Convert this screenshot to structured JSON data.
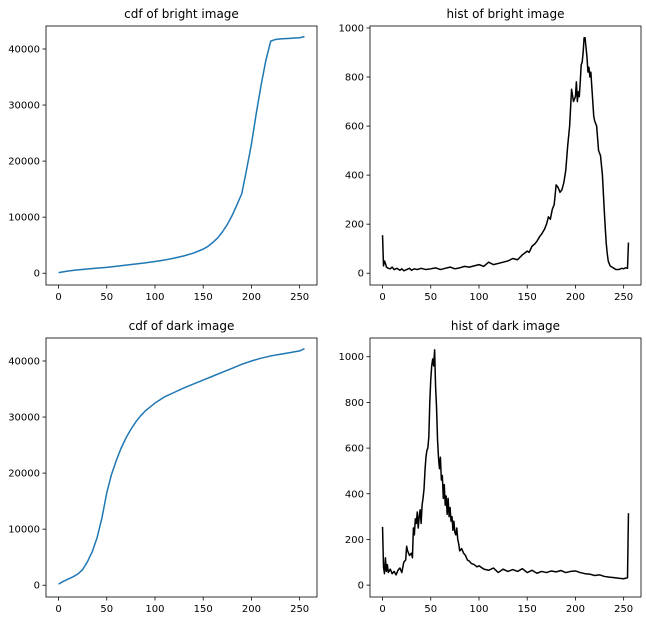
{
  "chart_data": [
    {
      "type": "line",
      "title": "cdf of bright image",
      "xlim": [
        -13,
        268
      ],
      "ylim": [
        -2100,
        44100
      ],
      "xticks": [
        0,
        50,
        100,
        150,
        200,
        250
      ],
      "yticks": [
        0,
        10000,
        20000,
        30000,
        40000
      ],
      "grid": false,
      "series": [
        {
          "color": "#1f77b4",
          "x": [
            0,
            10,
            20,
            30,
            40,
            50,
            60,
            70,
            80,
            90,
            100,
            110,
            120,
            130,
            140,
            150,
            155,
            160,
            165,
            170,
            175,
            180,
            185,
            190,
            195,
            200,
            205,
            210,
            215,
            220,
            225,
            230,
            235,
            240,
            245,
            250,
            255
          ],
          "y": [
            100,
            400,
            600,
            750,
            900,
            1050,
            1250,
            1450,
            1650,
            1850,
            2100,
            2350,
            2700,
            3100,
            3600,
            4300,
            4800,
            5500,
            6300,
            7400,
            8700,
            10300,
            12200,
            14200,
            18500,
            23000,
            28500,
            33500,
            38000,
            41400,
            41700,
            41800,
            41850,
            41900,
            41950,
            42000,
            42200
          ]
        }
      ]
    },
    {
      "type": "line",
      "title": "hist of bright image",
      "xlim": [
        -13,
        268
      ],
      "ylim": [
        -48,
        1008
      ],
      "xticks": [
        0,
        50,
        100,
        150,
        200,
        250
      ],
      "yticks": [
        0,
        200,
        400,
        600,
        800,
        1000
      ],
      "grid": false,
      "series": [
        {
          "color": "#000000",
          "x": [
            0,
            1,
            2,
            3,
            4,
            6,
            8,
            10,
            12,
            15,
            18,
            20,
            22,
            25,
            28,
            30,
            33,
            36,
            40,
            45,
            50,
            55,
            60,
            65,
            70,
            75,
            80,
            85,
            90,
            95,
            100,
            105,
            110,
            115,
            120,
            125,
            130,
            135,
            140,
            145,
            150,
            152,
            155,
            158,
            160,
            163,
            165,
            168,
            170,
            172,
            174,
            176,
            178,
            180,
            182,
            184,
            186,
            188,
            190,
            192,
            194,
            196,
            198,
            200,
            201,
            202,
            203,
            204,
            205,
            206,
            207,
            208,
            209,
            210,
            211,
            212,
            213,
            214,
            215,
            216,
            217,
            218,
            219,
            220,
            222,
            224,
            226,
            228,
            230,
            231,
            232,
            233,
            234,
            235,
            236,
            238,
            240,
            242,
            245,
            248,
            250,
            252,
            254,
            255
          ],
          "y": [
            155,
            30,
            50,
            40,
            25,
            20,
            18,
            25,
            15,
            20,
            12,
            18,
            10,
            15,
            20,
            12,
            18,
            15,
            20,
            15,
            18,
            22,
            15,
            20,
            25,
            18,
            22,
            28,
            25,
            30,
            35,
            28,
            45,
            35,
            40,
            45,
            50,
            60,
            55,
            75,
            90,
            85,
            110,
            120,
            130,
            150,
            160,
            180,
            200,
            230,
            220,
            260,
            280,
            360,
            350,
            330,
            340,
            370,
            420,
            520,
            600,
            750,
            700,
            720,
            780,
            700,
            740,
            720,
            780,
            850,
            860,
            900,
            960,
            960,
            920,
            880,
            820,
            840,
            800,
            820,
            760,
            700,
            640,
            620,
            600,
            500,
            480,
            400,
            250,
            180,
            120,
            80,
            50,
            40,
            30,
            25,
            20,
            15,
            15,
            20,
            18,
            22,
            20,
            125
          ]
        }
      ]
    },
    {
      "type": "line",
      "title": "cdf of dark image",
      "xlim": [
        -13,
        268
      ],
      "ylim": [
        -2100,
        44100
      ],
      "xticks": [
        0,
        50,
        100,
        150,
        200,
        250
      ],
      "yticks": [
        0,
        10000,
        20000,
        30000,
        40000
      ],
      "grid": false,
      "series": [
        {
          "color": "#1f77b4",
          "x": [
            0,
            5,
            10,
            15,
            20,
            25,
            30,
            35,
            40,
            45,
            50,
            55,
            60,
            65,
            70,
            75,
            80,
            85,
            90,
            95,
            100,
            110,
            120,
            130,
            140,
            150,
            160,
            170,
            180,
            190,
            200,
            210,
            220,
            230,
            240,
            250,
            255
          ],
          "y": [
            200,
            700,
            1100,
            1500,
            2000,
            2800,
            4200,
            6000,
            8500,
            12000,
            16500,
            19800,
            22300,
            24500,
            26300,
            27800,
            29100,
            30200,
            31100,
            31800,
            32500,
            33600,
            34400,
            35200,
            35900,
            36600,
            37300,
            38000,
            38700,
            39400,
            40000,
            40500,
            40900,
            41200,
            41500,
            41800,
            42200
          ]
        }
      ]
    },
    {
      "type": "line",
      "title": "hist of dark image",
      "xlim": [
        -13,
        268
      ],
      "ylim": [
        -52,
        1082
      ],
      "xticks": [
        0,
        50,
        100,
        150,
        200,
        250
      ],
      "yticks": [
        0,
        200,
        400,
        600,
        800,
        1000
      ],
      "grid": false,
      "series": [
        {
          "color": "#000000",
          "x": [
            0,
            1,
            2,
            3,
            4,
            5,
            6,
            8,
            10,
            12,
            14,
            16,
            18,
            20,
            22,
            24,
            25,
            26,
            28,
            30,
            31,
            32,
            33,
            34,
            35,
            36,
            37,
            38,
            39,
            40,
            41,
            42,
            43,
            44,
            45,
            46,
            47,
            48,
            49,
            50,
            51,
            52,
            53,
            54,
            55,
            56,
            57,
            58,
            59,
            60,
            61,
            62,
            63,
            64,
            65,
            66,
            67,
            68,
            69,
            70,
            71,
            72,
            73,
            74,
            75,
            76,
            77,
            78,
            79,
            80,
            82,
            84,
            86,
            88,
            90,
            92,
            95,
            98,
            100,
            105,
            110,
            115,
            120,
            125,
            130,
            135,
            140,
            145,
            150,
            155,
            160,
            165,
            170,
            175,
            180,
            185,
            190,
            195,
            200,
            205,
            210,
            215,
            220,
            225,
            230,
            235,
            240,
            245,
            250,
            252,
            254,
            255
          ],
          "y": [
            255,
            80,
            50,
            120,
            60,
            90,
            55,
            70,
            50,
            60,
            45,
            65,
            75,
            55,
            100,
            110,
            170,
            150,
            130,
            140,
            120,
            250,
            220,
            290,
            270,
            320,
            250,
            300,
            330,
            270,
            350,
            380,
            420,
            500,
            560,
            590,
            600,
            650,
            800,
            900,
            960,
            990,
            960,
            1030,
            870,
            780,
            640,
            560,
            510,
            560,
            460,
            480,
            380,
            440,
            350,
            390,
            310,
            380,
            300,
            340,
            280,
            300,
            240,
            280,
            230,
            220,
            250,
            200,
            180,
            150,
            160,
            140,
            130,
            110,
            105,
            95,
            90,
            80,
            85,
            70,
            65,
            75,
            55,
            70,
            60,
            68,
            60,
            72,
            55,
            65,
            52,
            60,
            55,
            62,
            58,
            64,
            55,
            60,
            62,
            55,
            50,
            48,
            42,
            45,
            38,
            35,
            33,
            30,
            28,
            30,
            32,
            315
          ]
        }
      ]
    }
  ]
}
